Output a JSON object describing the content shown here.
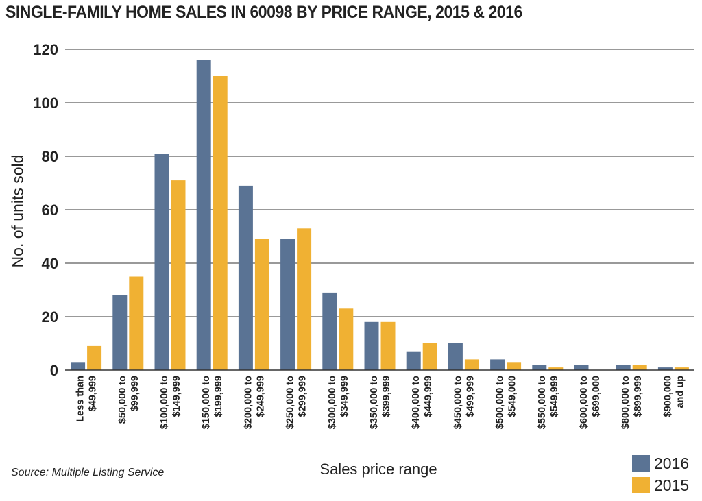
{
  "chart_data": {
    "type": "bar",
    "title": "SINGLE-FAMILY HOME SALES IN 60098 BY PRICE RANGE, 2015 & 2016",
    "xlabel": "Sales price range",
    "ylabel": "No. of units sold",
    "ylim": [
      0,
      120
    ],
    "yticks": [
      "0",
      "20",
      "40",
      "60",
      "80",
      "100",
      "120"
    ],
    "grid": true,
    "legend_position": "bottom-right",
    "source": "Source: Multiple Listing Service",
    "categories": [
      [
        "Less than",
        "$49,999"
      ],
      [
        "$50,000 to",
        "$99,999"
      ],
      [
        "$100,000 to",
        "$149,999"
      ],
      [
        "$150,000 to",
        "$199,999"
      ],
      [
        "$200,000 to",
        "$249,999"
      ],
      [
        "$250,000 to",
        "$299,999"
      ],
      [
        "$300,000 to",
        "$349,999"
      ],
      [
        "$350,000 to",
        "$399,999"
      ],
      [
        "$400,000 to",
        "$449,999"
      ],
      [
        "$450,000 to",
        "$499,999"
      ],
      [
        "$500,000 to",
        "$549,000"
      ],
      [
        "$550,000 to",
        "$549,999"
      ],
      [
        "$600,000 to",
        "$699,000"
      ],
      [
        "$800,000 to",
        "$899,999"
      ],
      [
        "$900,000",
        "and up"
      ]
    ],
    "series": [
      {
        "name": "2016",
        "color": "#5a7394",
        "values": [
          3,
          28,
          81,
          116,
          69,
          49,
          29,
          18,
          7,
          10,
          4,
          2,
          2,
          2,
          1
        ]
      },
      {
        "name": "2015",
        "color": "#f0b133",
        "values": [
          9,
          35,
          71,
          110,
          49,
          53,
          23,
          18,
          10,
          4,
          3,
          1,
          0,
          2,
          1
        ]
      }
    ]
  }
}
